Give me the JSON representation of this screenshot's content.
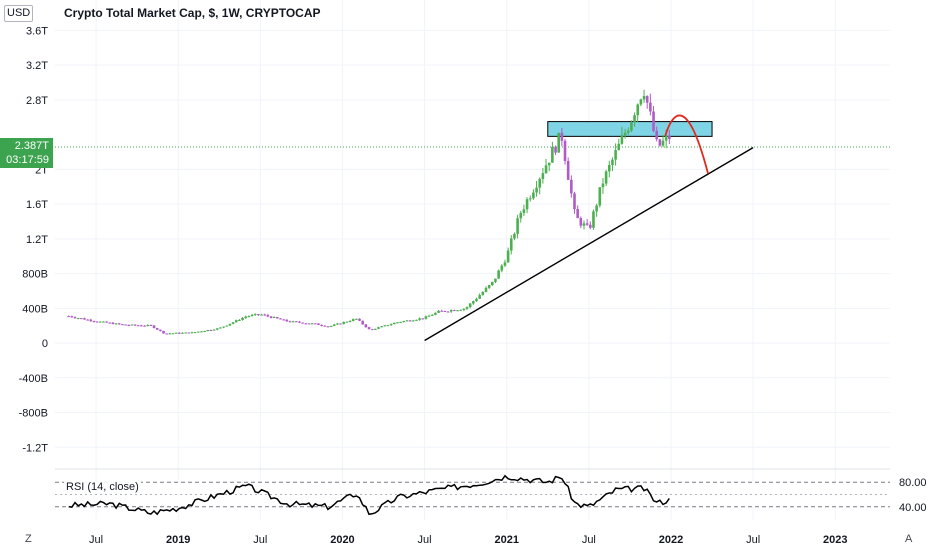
{
  "header": {
    "currency": "USD",
    "title": "Crypto Total Market Cap, $, 1W, CRYPTOCAP"
  },
  "price_tag": {
    "value": "2.387T",
    "countdown": "03:17:59"
  },
  "rsi": {
    "legend": "RSI (14, close)",
    "ticks": [
      "80.00",
      "40.00"
    ]
  },
  "buttons": {
    "left": "Z",
    "right": "A"
  },
  "colors": {
    "up": "#4caf50",
    "down": "#b05bc6",
    "zone": "#7fd4e6",
    "arc": "#e0291b",
    "trend": "#000000",
    "tag": "#3ca34f"
  },
  "chart_data": {
    "type": "candlestick",
    "title": "Crypto Total Market Cap, $, 1W, CRYPTOCAP",
    "y_unit": "USD",
    "y_ticks": [
      "3.6T",
      "3.2T",
      "2.8T",
      "2T",
      "1.6T",
      "1.2T",
      "800B",
      "400B",
      "0",
      "-400B",
      "-800B",
      "-1.2T"
    ],
    "y_tick_values": [
      3.6,
      3.2,
      2.8,
      2.0,
      1.6,
      1.2,
      0.8,
      0.4,
      0,
      -0.4,
      -0.8,
      -1.2
    ],
    "ylim": [
      -1.45,
      3.95
    ],
    "x_ticks": [
      "Jul",
      "2019",
      "Jul",
      "2020",
      "Jul",
      "2021",
      "Jul",
      "2022",
      "Jul",
      "2023"
    ],
    "x_tick_dates": [
      "2018-07",
      "2019-01",
      "2019-07",
      "2020-01",
      "2020-07",
      "2021-01",
      "2021-07",
      "2022-01",
      "2022-07",
      "2023-01"
    ],
    "x_range": [
      "2018-04",
      "2023-05"
    ],
    "last_value": 2.387,
    "price_series": [
      {
        "date": "2018-05",
        "value": 0.31
      },
      {
        "date": "2018-07",
        "value": 0.25
      },
      {
        "date": "2018-09",
        "value": 0.21
      },
      {
        "date": "2018-11",
        "value": 0.2
      },
      {
        "date": "2018-12",
        "value": 0.11
      },
      {
        "date": "2019-02",
        "value": 0.12
      },
      {
        "date": "2019-04",
        "value": 0.17
      },
      {
        "date": "2019-06",
        "value": 0.31
      },
      {
        "date": "2019-07",
        "value": 0.33
      },
      {
        "date": "2019-09",
        "value": 0.25
      },
      {
        "date": "2019-11",
        "value": 0.22
      },
      {
        "date": "2019-12",
        "value": 0.19
      },
      {
        "date": "2020-02",
        "value": 0.28
      },
      {
        "date": "2020-03",
        "value": 0.15
      },
      {
        "date": "2020-05",
        "value": 0.24
      },
      {
        "date": "2020-07",
        "value": 0.29
      },
      {
        "date": "2020-08",
        "value": 0.36
      },
      {
        "date": "2020-10",
        "value": 0.4
      },
      {
        "date": "2020-11",
        "value": 0.55
      },
      {
        "date": "2020-12",
        "value": 0.7
      },
      {
        "date": "2021-01",
        "value": 1.0
      },
      {
        "date": "2021-02",
        "value": 1.5
      },
      {
        "date": "2021-03",
        "value": 1.8
      },
      {
        "date": "2021-04",
        "value": 2.1
      },
      {
        "date": "2021-05",
        "value": 2.4
      },
      {
        "date": "2021-06",
        "value": 1.45
      },
      {
        "date": "2021-07",
        "value": 1.3
      },
      {
        "date": "2021-08",
        "value": 1.85
      },
      {
        "date": "2021-09",
        "value": 2.2
      },
      {
        "date": "2021-10",
        "value": 2.55
      },
      {
        "date": "2021-11",
        "value": 2.95
      },
      {
        "date": "2021-12",
        "value": 2.25
      },
      {
        "date": "2022-01",
        "value": 2.39
      }
    ],
    "annotations": {
      "resistance_zone": {
        "from": "2021-04",
        "to": "2022-04",
        "low": 2.38,
        "high": 2.55
      },
      "trendline": {
        "start": {
          "date": "2020-07",
          "value": 0.03
        },
        "end": {
          "date": "2022-07",
          "value": 2.25
        }
      },
      "projection_arc": {
        "from": "2021-12",
        "to": "2022-04",
        "peak": 2.55,
        "end": 1.95
      }
    },
    "rsi_series": [
      {
        "date": "2018-05",
        "value": 42
      },
      {
        "date": "2018-08",
        "value": 45
      },
      {
        "date": "2018-11",
        "value": 30
      },
      {
        "date": "2019-01",
        "value": 38
      },
      {
        "date": "2019-04",
        "value": 60
      },
      {
        "date": "2019-06",
        "value": 74
      },
      {
        "date": "2019-09",
        "value": 45
      },
      {
        "date": "2019-12",
        "value": 40
      },
      {
        "date": "2020-02",
        "value": 62
      },
      {
        "date": "2020-03",
        "value": 28
      },
      {
        "date": "2020-05",
        "value": 55
      },
      {
        "date": "2020-08",
        "value": 68
      },
      {
        "date": "2020-11",
        "value": 78
      },
      {
        "date": "2021-01",
        "value": 90
      },
      {
        "date": "2021-04",
        "value": 80
      },
      {
        "date": "2021-05",
        "value": 90
      },
      {
        "date": "2021-06",
        "value": 45
      },
      {
        "date": "2021-07",
        "value": 40
      },
      {
        "date": "2021-09",
        "value": 68
      },
      {
        "date": "2021-11",
        "value": 70
      },
      {
        "date": "2021-12",
        "value": 46
      },
      {
        "date": "2022-01",
        "value": 52
      }
    ],
    "rsi_ylim": [
      25,
      95
    ]
  }
}
